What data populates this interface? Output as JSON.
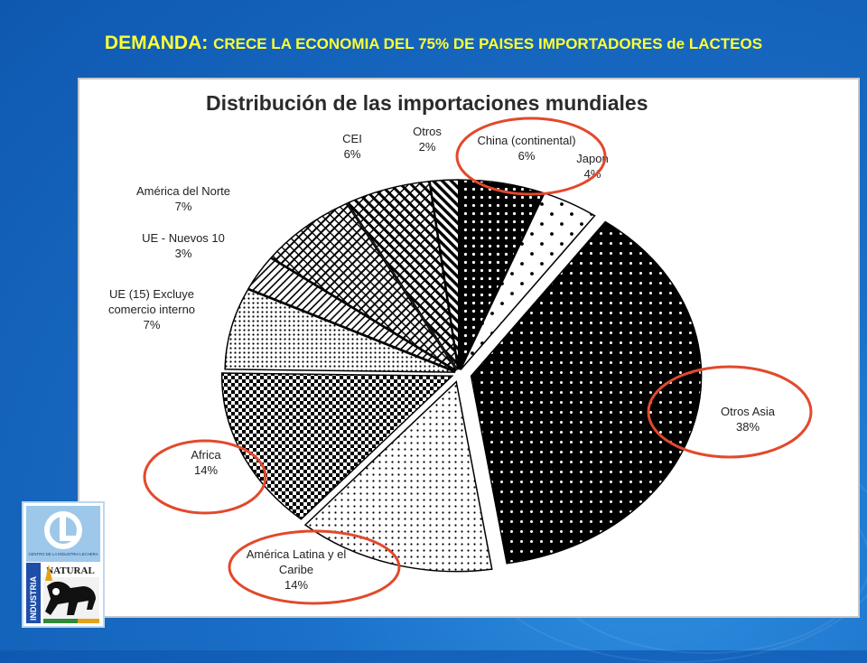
{
  "slide": {
    "heading_lead": "DEMANDA: ",
    "heading_rest": "CRECE LA ECONOMIA DEL 75% DE PAISES IMPORTADORES de LACTEOS"
  },
  "colors": {
    "heading": "#ffff33",
    "highlight_circle": "#e2492b",
    "background": "#1a6fc8"
  },
  "logo": {
    "ring_text": "CENTRO DE LA INDUSTRIA LECHERA",
    "brand_text": "NATURAL",
    "side_text": "INDUSTRIA"
  },
  "chart_data": {
    "type": "pie",
    "title": "Distribución de las importaciones mundiales",
    "slices": [
      {
        "label": [
          "China (continental)"
        ],
        "pct_text": "6%",
        "value": 6,
        "pattern": "dots-dense",
        "highlighted": true
      },
      {
        "label": [
          "Japon"
        ],
        "pct_text": "4%",
        "value": 4,
        "pattern": "dots-sparse",
        "highlighted": false
      },
      {
        "label": [
          "Otros Asia"
        ],
        "pct_text": "38%",
        "value": 38,
        "pattern": "dots-medium",
        "highlighted": true
      },
      {
        "label": [
          "América Latina y el",
          "Caribe"
        ],
        "pct_text": "14%",
        "value": 14,
        "pattern": "dots-light",
        "highlighted": true
      },
      {
        "label": [
          "Africa"
        ],
        "pct_text": "14%",
        "value": 14,
        "pattern": "checker",
        "highlighted": true
      },
      {
        "label": [
          "UE (15) Excluye",
          "comercio interno"
        ],
        "pct_text": "7%",
        "value": 7,
        "pattern": "dots-fine",
        "highlighted": false
      },
      {
        "label": [
          "UE - Nuevos 10"
        ],
        "pct_text": "3%",
        "value": 3,
        "pattern": "diag-thin",
        "highlighted": false
      },
      {
        "label": [
          "América del Norte"
        ],
        "pct_text": "7%",
        "value": 7,
        "pattern": "diag-grid",
        "highlighted": false
      },
      {
        "label": [
          "CEI"
        ],
        "pct_text": "6%",
        "value": 6,
        "pattern": "diag-zigzag",
        "highlighted": false
      },
      {
        "label": [
          "Otros"
        ],
        "pct_text": "2%",
        "value": 2,
        "pattern": "diag-bold",
        "highlighted": false
      }
    ]
  }
}
